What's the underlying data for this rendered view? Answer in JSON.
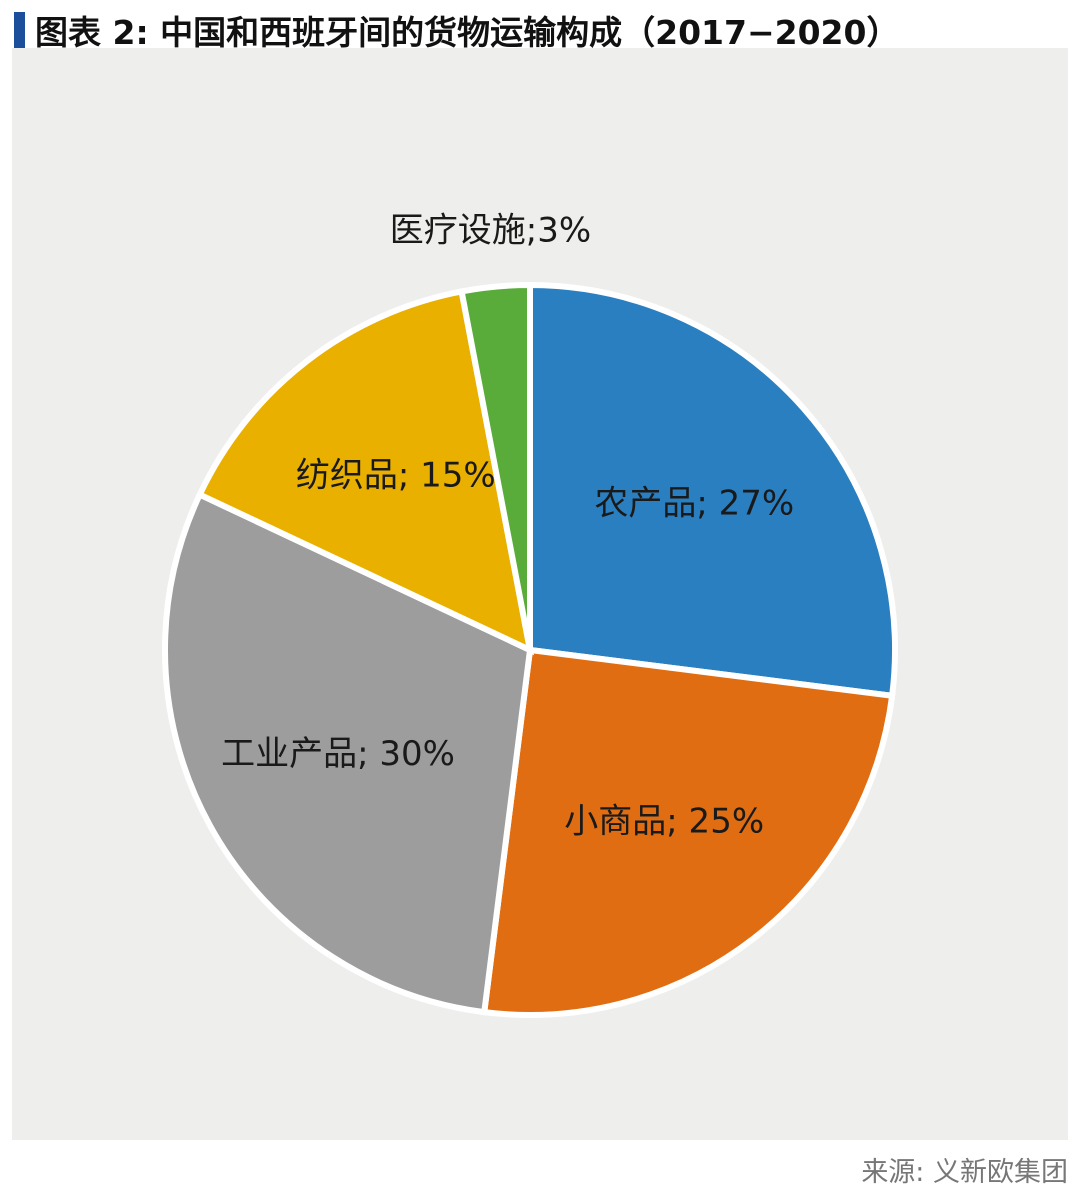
{
  "chart_data": {
    "type": "pie",
    "title": "图表 2: 中国和西班牙间的货物运输构成（2017−2020）",
    "labels": [
      "农产品; 27%",
      "小商品; 25%",
      "工业产品; 30%",
      "纺织品; 15%",
      "医疗设施;3%"
    ],
    "values": [
      27,
      25,
      30,
      15,
      3
    ],
    "colors": [
      "#2a7fc1",
      "#e06d12",
      "#9d9d9d",
      "#e9b000",
      "#5aac3a"
    ],
    "source": "来源: 义新欧集团"
  }
}
